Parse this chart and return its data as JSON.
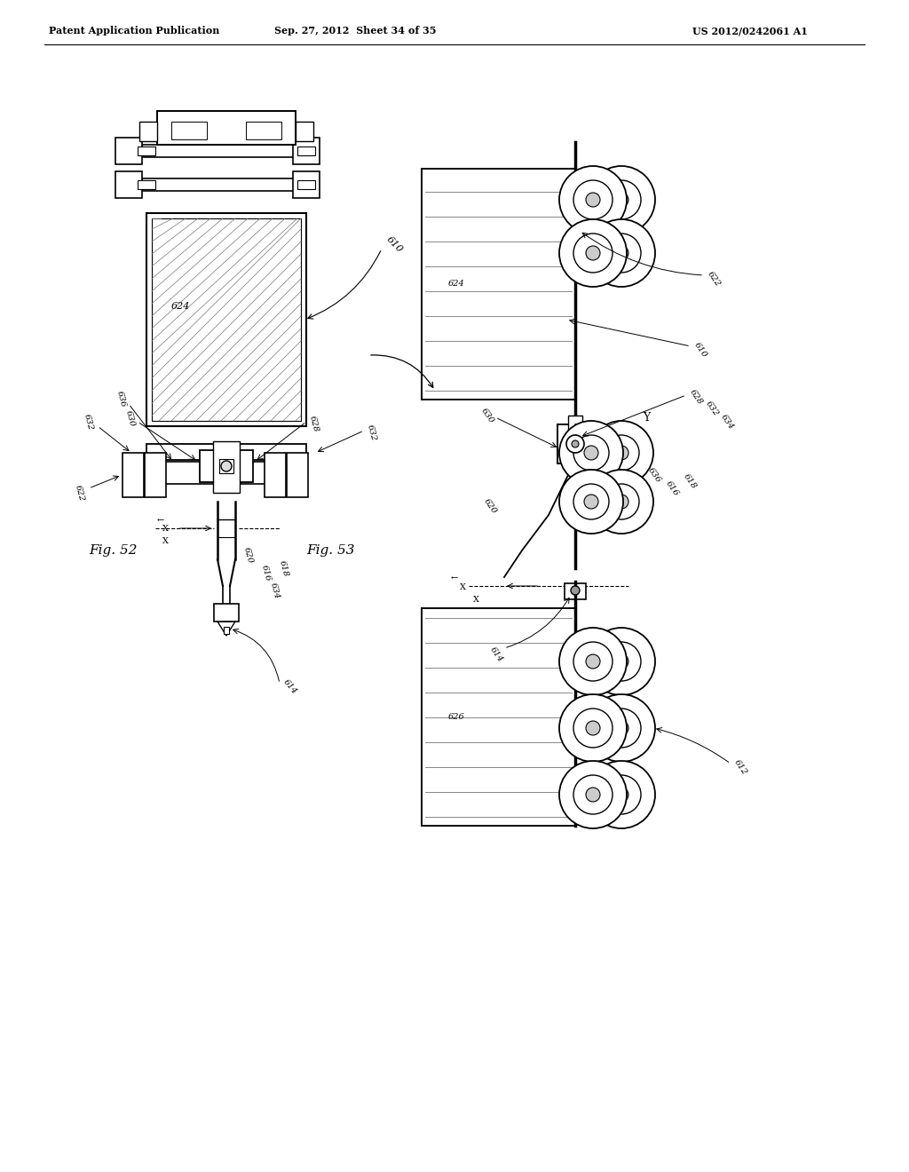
{
  "title_left": "Patent Application Publication",
  "title_mid": "Sep. 27, 2012  Sheet 34 of 35",
  "title_right": "US 2012/0242061 A1",
  "fig52_label": "Fig. 52",
  "fig53_label": "Fig. 53",
  "bg_color": "#ffffff",
  "line_color": "#000000"
}
